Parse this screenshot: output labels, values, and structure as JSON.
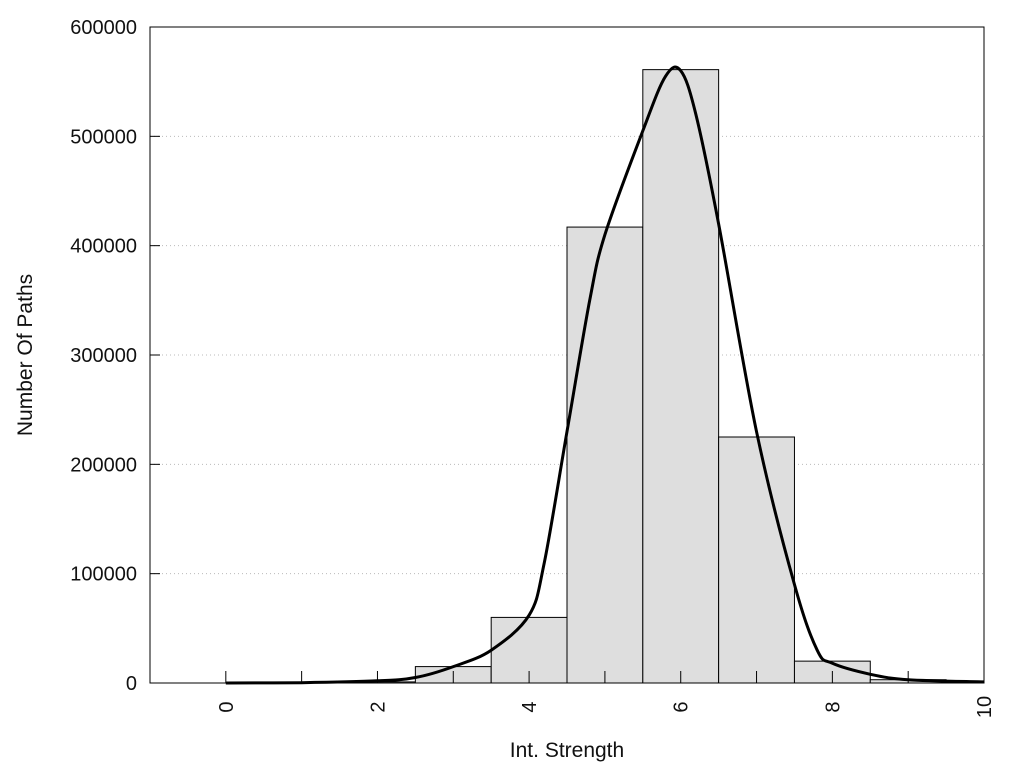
{
  "chart_data": {
    "type": "bar",
    "title": "",
    "xlabel": "Int. Strength",
    "ylabel": "Number Of Paths",
    "xlim": [
      -1,
      10
    ],
    "ylim": [
      0,
      600000
    ],
    "x_ticks": [
      0,
      2,
      4,
      6,
      8,
      10
    ],
    "y_ticks": [
      0,
      100000,
      200000,
      300000,
      400000,
      500000,
      600000
    ],
    "x_minor_ticks": [
      1,
      3,
      5,
      7,
      9
    ],
    "grid": "horizontal-dotted",
    "bar_width": 1,
    "x": [
      0,
      1,
      2,
      3,
      4,
      5,
      6,
      7,
      8,
      9
    ],
    "values": [
      0,
      0,
      1000,
      15000,
      60000,
      417000,
      561000,
      225000,
      20000,
      3000
    ],
    "bar_color": "#dedede",
    "curve": {
      "x": [
        0,
        1,
        2,
        2.5,
        3,
        3.5,
        4,
        4.2,
        4.5,
        4.8,
        5,
        5.5,
        5.8,
        6,
        6.2,
        6.5,
        7,
        7.5,
        7.8,
        8,
        8.5,
        9,
        10
      ],
      "y": [
        0,
        300,
        2000,
        5000,
        15000,
        30000,
        62000,
        110000,
        230000,
        350000,
        410000,
        505000,
        555000,
        560000,
        520000,
        420000,
        230000,
        90000,
        30000,
        18000,
        8000,
        3000,
        1000
      ],
      "color": "#000000"
    }
  }
}
